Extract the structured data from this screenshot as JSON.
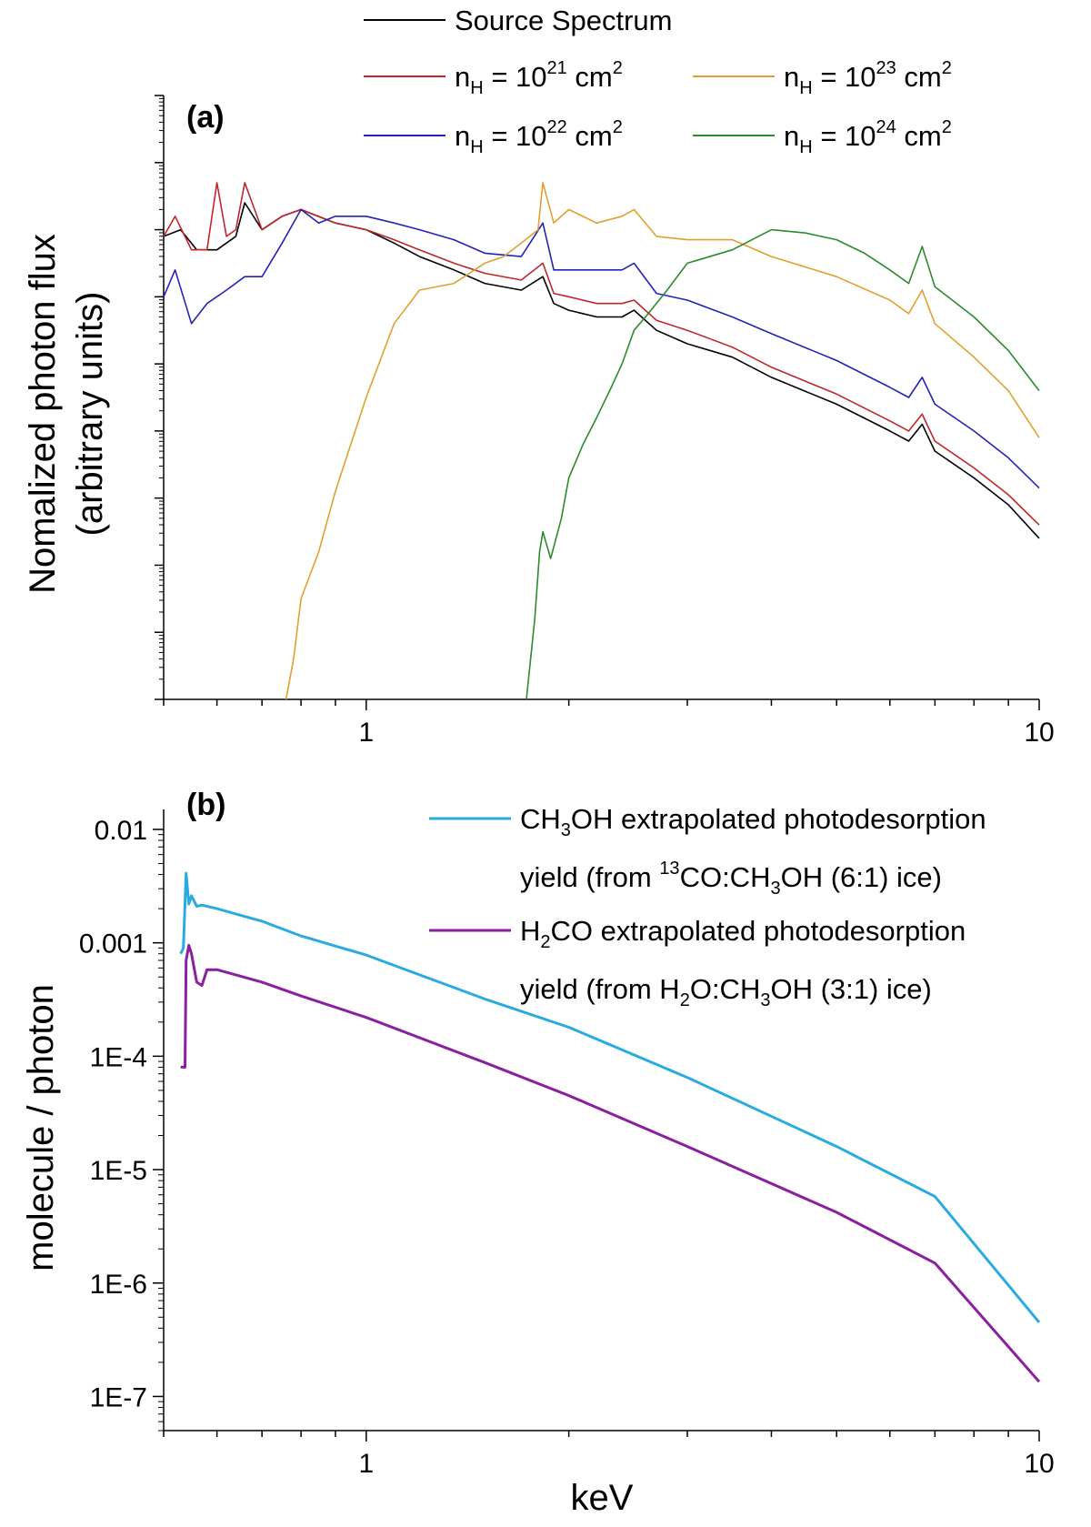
{
  "chart_data": [
    {
      "panel": "(a)",
      "type": "line",
      "xscale": "log",
      "yscale": "log",
      "xlim": [
        0.5,
        10
      ],
      "ylim_decades": [
        -9,
        0
      ],
      "xticks": [
        1,
        10
      ],
      "xtick_labels": [
        "1",
        "10"
      ],
      "xlabel": "",
      "ylabel": [
        "Nomalized photon flux",
        "(arbitrary units)"
      ],
      "ytick_labels_shown": false,
      "legend_position": "top",
      "series": [
        {
          "key": "source",
          "name": "Source Spectrum",
          "legend_parts": [
            "Source Spectrum"
          ],
          "color": "#000000",
          "x": [
            0.5,
            0.53,
            0.56,
            0.6,
            0.64,
            0.66,
            0.7,
            0.75,
            0.8,
            0.9,
            1.0,
            1.1,
            1.2,
            1.35,
            1.5,
            1.7,
            1.83,
            1.9,
            2.0,
            2.2,
            2.4,
            2.5,
            2.7,
            3.0,
            3.5,
            4.0,
            5.0,
            6.0,
            6.4,
            6.7,
            7.0,
            8.0,
            9.0,
            10.0
          ],
          "y": [
            -2.1,
            -2.0,
            -2.3,
            -2.3,
            -2.1,
            -1.6,
            -2.0,
            -1.8,
            -1.7,
            -1.9,
            -2.0,
            -2.2,
            -2.4,
            -2.6,
            -2.8,
            -2.9,
            -2.7,
            -3.1,
            -3.2,
            -3.3,
            -3.3,
            -3.2,
            -3.5,
            -3.7,
            -3.9,
            -4.2,
            -4.6,
            -5.0,
            -5.15,
            -4.9,
            -5.3,
            -5.7,
            -6.1,
            -6.6
          ]
        },
        {
          "key": "nh21",
          "name": "n_H = 10^21 cm^2",
          "legend_parts": [
            "n",
            "H",
            " = 10",
            "21",
            " cm",
            "2"
          ],
          "color": "#c0262a",
          "x": [
            0.5,
            0.52,
            0.55,
            0.58,
            0.6,
            0.62,
            0.64,
            0.66,
            0.7,
            0.75,
            0.8,
            0.9,
            1.0,
            1.1,
            1.2,
            1.35,
            1.5,
            1.7,
            1.83,
            1.9,
            2.0,
            2.2,
            2.4,
            2.5,
            2.7,
            3.0,
            3.5,
            4.0,
            5.0,
            6.0,
            6.4,
            6.7,
            7.0,
            8.0,
            9.0,
            10.0
          ],
          "y": [
            -2.1,
            -1.8,
            -2.3,
            -2.3,
            -1.3,
            -2.1,
            -2.0,
            -1.3,
            -2.0,
            -1.8,
            -1.7,
            -1.9,
            -2.0,
            -2.15,
            -2.3,
            -2.5,
            -2.65,
            -2.75,
            -2.5,
            -2.95,
            -3.0,
            -3.1,
            -3.1,
            -3.05,
            -3.35,
            -3.5,
            -3.75,
            -4.05,
            -4.45,
            -4.85,
            -5.0,
            -4.75,
            -5.15,
            -5.55,
            -5.95,
            -6.4
          ]
        },
        {
          "key": "nh22",
          "name": "n_H = 10^22 cm^2",
          "legend_parts": [
            "n",
            "H",
            " = 10",
            "22",
            " cm",
            "2"
          ],
          "color": "#2323b8",
          "x": [
            0.5,
            0.52,
            0.55,
            0.58,
            0.62,
            0.66,
            0.7,
            0.75,
            0.8,
            0.85,
            0.9,
            1.0,
            1.1,
            1.2,
            1.35,
            1.5,
            1.7,
            1.83,
            1.9,
            2.0,
            2.2,
            2.4,
            2.5,
            2.7,
            3.0,
            3.5,
            4.0,
            5.0,
            6.0,
            6.4,
            6.7,
            7.0,
            8.0,
            9.0,
            10.0
          ],
          "y": [
            -3.0,
            -2.6,
            -3.4,
            -3.1,
            -2.9,
            -2.7,
            -2.7,
            -2.2,
            -1.7,
            -1.9,
            -1.8,
            -1.8,
            -1.9,
            -2.0,
            -2.15,
            -2.35,
            -2.4,
            -1.9,
            -2.6,
            -2.6,
            -2.6,
            -2.6,
            -2.5,
            -2.95,
            -3.05,
            -3.3,
            -3.55,
            -3.95,
            -4.35,
            -4.5,
            -4.2,
            -4.6,
            -5.0,
            -5.4,
            -5.85
          ]
        },
        {
          "key": "nh23",
          "name": "n_H = 10^23 cm^2",
          "legend_parts": [
            "n",
            "H",
            " = 10",
            "23",
            " cm",
            "2"
          ],
          "color": "#e0a030",
          "x": [
            0.76,
            0.78,
            0.8,
            0.85,
            0.9,
            1.0,
            1.1,
            1.2,
            1.35,
            1.5,
            1.6,
            1.7,
            1.8,
            1.83,
            1.9,
            2.0,
            2.2,
            2.4,
            2.5,
            2.7,
            3.0,
            3.5,
            4.0,
            5.0,
            6.0,
            6.4,
            6.7,
            7.0,
            8.0,
            9.0,
            10.0
          ],
          "y": [
            -9.0,
            -8.4,
            -7.5,
            -6.8,
            -5.9,
            -4.5,
            -3.4,
            -2.9,
            -2.8,
            -2.5,
            -2.4,
            -2.2,
            -2.0,
            -1.3,
            -1.9,
            -1.7,
            -1.9,
            -1.8,
            -1.7,
            -2.1,
            -2.15,
            -2.15,
            -2.4,
            -2.7,
            -3.05,
            -3.25,
            -2.9,
            -3.4,
            -3.9,
            -4.4,
            -5.1
          ]
        },
        {
          "key": "nh24",
          "name": "n_H = 10^24 cm^2",
          "legend_parts": [
            "n",
            "H",
            " = 10",
            "24",
            " cm",
            "2"
          ],
          "color": "#2e8a2e",
          "x": [
            1.73,
            1.78,
            1.81,
            1.83,
            1.88,
            1.95,
            2.0,
            2.1,
            2.2,
            2.3,
            2.4,
            2.5,
            2.6,
            2.8,
            3.0,
            3.5,
            4.0,
            4.5,
            5.0,
            5.5,
            6.0,
            6.4,
            6.7,
            7.0,
            8.0,
            9.0,
            10.0
          ],
          "y": [
            -9.0,
            -7.8,
            -6.8,
            -6.5,
            -6.9,
            -6.3,
            -5.7,
            -5.2,
            -4.8,
            -4.4,
            -4.0,
            -3.5,
            -3.3,
            -2.9,
            -2.5,
            -2.3,
            -2.0,
            -2.05,
            -2.15,
            -2.35,
            -2.6,
            -2.8,
            -2.25,
            -2.85,
            -3.3,
            -3.8,
            -4.4
          ]
        }
      ]
    },
    {
      "panel": "(b)",
      "type": "line",
      "xscale": "log",
      "yscale": "log",
      "xlim": [
        0.5,
        10
      ],
      "ylim": [
        5e-08,
        0.015
      ],
      "xticks": [
        1,
        10
      ],
      "xtick_labels": [
        "1",
        "10"
      ],
      "yticks": [
        0.01,
        0.001,
        0.0001,
        1e-05,
        1e-06,
        1e-07
      ],
      "ytick_labels": [
        "0.01",
        "0.001",
        "1E-4",
        "1E-5",
        "1E-6",
        "1E-7"
      ],
      "xlabel": "keV",
      "ylabel": "molecule / photon",
      "legend_position": "top-right",
      "series": [
        {
          "key": "ch3oh",
          "name": "CH3OH extrapolated photodesorption yield (from 13CO:CH3OH (6:1) ice)",
          "legend_line1": [
            "CH",
            "3",
            "OH extrapolated photodesorption"
          ],
          "legend_line2": [
            "yield (from ",
            "13",
            "CO:CH",
            "3",
            "OH (6:1) ice)"
          ],
          "color": "#29abe2",
          "x": [
            0.53,
            0.535,
            0.54,
            0.545,
            0.55,
            0.56,
            0.57,
            0.6,
            0.7,
            0.8,
            1.0,
            1.5,
            2.0,
            3.0,
            5.0,
            7.0,
            10.0
          ],
          "y": [
            0.0008,
            0.0009,
            0.0041,
            0.0022,
            0.0026,
            0.0021,
            0.00215,
            0.002,
            0.00155,
            0.00115,
            0.00078,
            0.00032,
            0.00018,
            6.5e-05,
            1.6e-05,
            5.8e-06,
            4.5e-07
          ]
        },
        {
          "key": "h2co",
          "name": "H2CO extrapolated photodesorption yield (from H2O:CH3OH (3:1) ice)",
          "legend_line1": [
            "H",
            "2",
            "CO extrapolated photodesorption"
          ],
          "legend_line2": [
            "yield (from H",
            "2",
            "O:CH",
            "3",
            "OH (3:1) ice)"
          ],
          "color": "#8a1fa0",
          "x": [
            0.53,
            0.538,
            0.54,
            0.545,
            0.55,
            0.56,
            0.57,
            0.58,
            0.6,
            0.7,
            0.8,
            1.0,
            1.5,
            2.0,
            3.0,
            5.0,
            7.0,
            10.0
          ],
          "y": [
            8e-05,
            8e-05,
            0.0007,
            0.00095,
            0.0008,
            0.00045,
            0.00042,
            0.00058,
            0.00058,
            0.00045,
            0.00034,
            0.00022,
            8.8e-05,
            4.5e-05,
            1.6e-05,
            4.2e-06,
            1.5e-06,
            1.35e-07
          ]
        }
      ]
    }
  ]
}
